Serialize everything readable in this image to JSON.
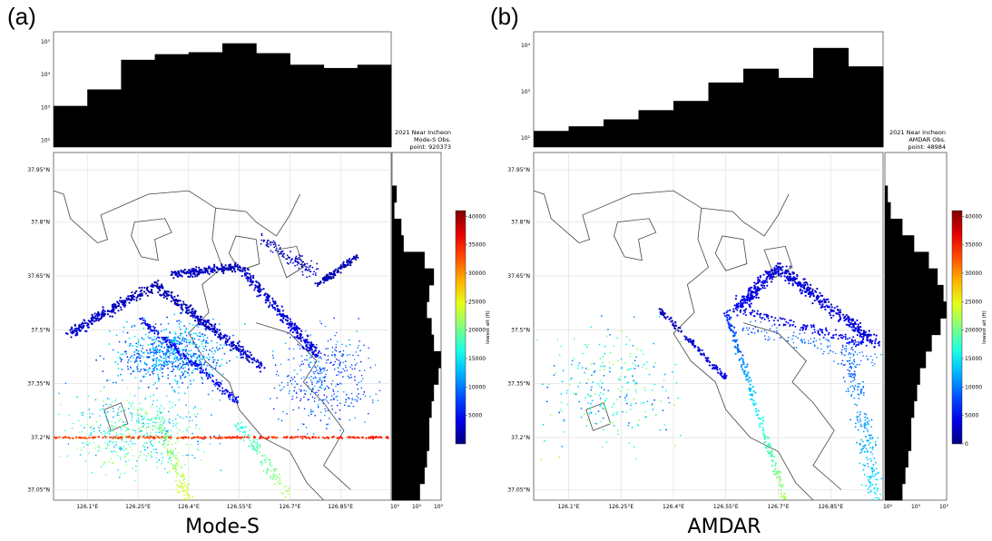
{
  "chart_data": [
    {
      "type": "scatter",
      "panel_label": "(a)",
      "caption": "Mode-S",
      "info": [
        "2021 Near Incheon",
        "Mode-S Obs.",
        "point: 920373"
      ],
      "xticks": [
        "126.1°E",
        "126.25°E",
        "126.4°E",
        "126.55°E",
        "126.7°E",
        "126.85°E"
      ],
      "yticks": [
        "37.95°N",
        "37.8°N",
        "37.65°N",
        "37.5°N",
        "37.35°N",
        "37.2°N",
        "37.05°N"
      ],
      "top_hist_yticks": [
        "10⁵",
        "10⁴",
        "10³",
        "10²"
      ],
      "top_hist_log_counts": [
        3.05,
        3.55,
        4.45,
        4.62,
        4.68,
        4.95,
        4.65,
        4.3,
        4.2,
        4.3
      ],
      "right_hist_xticks": [
        "10⁰",
        "10⁵",
        "10⁵"
      ],
      "right_hist_log_counts": [
        0,
        0,
        0.1,
        0.05,
        0.2,
        0.25,
        0.7,
        0.9,
        0.8,
        0.75,
        0.85,
        0.9,
        1.05,
        1.0,
        0.9,
        0.85,
        0.8,
        0.8,
        0.75,
        0.7,
        0.6
      ],
      "colorbar": {
        "label": "lowest alt (ft)",
        "ticks": [
          "40000",
          "35000",
          "30000",
          "25000",
          "20000",
          "15000",
          "10000",
          "5000"
        ]
      },
      "grid": true
    },
    {
      "type": "scatter",
      "panel_label": "(b)",
      "caption": "AMDAR",
      "info": [
        "2021 Near Incheon",
        "AMDAR Obs.",
        "point: 48984"
      ],
      "xticks": [
        "126.1°E",
        "126.25°E",
        "126.4°E",
        "126.55°E",
        "126.7°E",
        "126.85°E"
      ],
      "yticks": [
        "37.95°N",
        "37.8°N",
        "37.65°N",
        "37.5°N",
        "37.35°N",
        "37.2°N",
        "37.05°N"
      ],
      "top_hist_yticks": [
        "10⁴",
        "10³",
        "10²"
      ],
      "top_hist_log_counts": [
        2.15,
        2.25,
        2.4,
        2.6,
        2.8,
        3.2,
        3.5,
        3.3,
        3.95,
        3.55
      ],
      "right_hist_xticks": [
        "10⁰",
        "10⁵",
        "10⁵"
      ],
      "right_hist_log_counts": [
        0,
        0,
        0.05,
        0.1,
        0.3,
        0.5,
        0.75,
        0.9,
        1.0,
        1.05,
        0.95,
        0.8,
        0.7,
        0.6,
        0.55,
        0.5,
        0.45,
        0.45,
        0.4,
        0.35,
        0.3
      ],
      "colorbar": {
        "label": "lowest alt (ft)",
        "ticks": [
          "40000",
          "35000",
          "30000",
          "25000",
          "20000",
          "15000",
          "10000",
          "5000",
          "0"
        ]
      },
      "grid": true
    }
  ]
}
